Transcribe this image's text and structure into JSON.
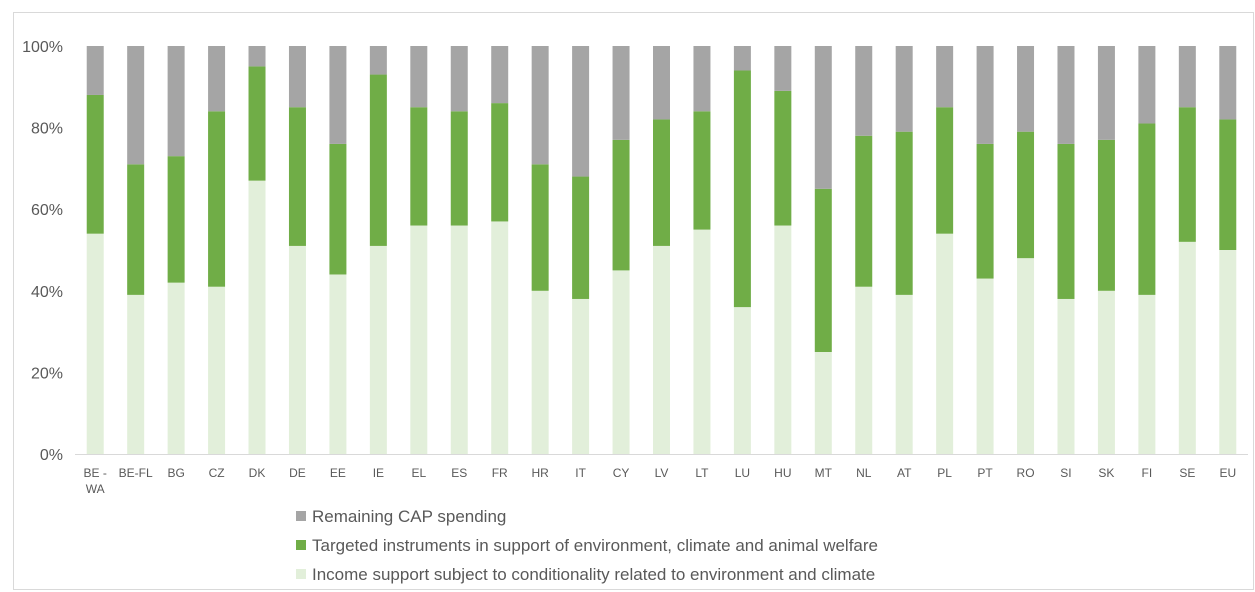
{
  "chart_data": {
    "type": "bar",
    "stacked": true,
    "categories": [
      "BE - WA",
      "BE-FL",
      "BG",
      "CZ",
      "DK",
      "DE",
      "EE",
      "IE",
      "EL",
      "ES",
      "FR",
      "HR",
      "IT",
      "CY",
      "LV",
      "LT",
      "LU",
      "HU",
      "MT",
      "NL",
      "AT",
      "PL",
      "PT",
      "RO",
      "SI",
      "SK",
      "FI",
      "SE",
      "EU"
    ],
    "series": [
      {
        "name": "Income support subject to conditionality related to environment and climate",
        "color": "#e2efda",
        "values": [
          54,
          39,
          42,
          41,
          67,
          51,
          44,
          51,
          56,
          56,
          57,
          40,
          38,
          45,
          51,
          55,
          36,
          56,
          25,
          41,
          39,
          54,
          43,
          48,
          38,
          40,
          39,
          52,
          50
        ]
      },
      {
        "name": "Targeted instruments  in support of environment, climate and animal welfare",
        "color": "#70ad47",
        "values": [
          34,
          32,
          31,
          43,
          28,
          34,
          32,
          42,
          29,
          28,
          29,
          31,
          30,
          32,
          31,
          29,
          58,
          33,
          40,
          37,
          40,
          31,
          33,
          31,
          38,
          37,
          42,
          33,
          32
        ]
      },
      {
        "name": "Remaining CAP spending",
        "color": "#a5a5a5",
        "values": [
          12,
          29,
          27,
          16,
          5,
          15,
          24,
          7,
          15,
          16,
          14,
          29,
          32,
          23,
          18,
          16,
          6,
          11,
          35,
          22,
          21,
          15,
          24,
          21,
          24,
          23,
          19,
          15,
          18
        ]
      }
    ],
    "y_ticks": [
      "0%",
      "20%",
      "40%",
      "60%",
      "80%",
      "100%"
    ],
    "ylim": [
      0,
      100
    ],
    "grid": false,
    "legend": {
      "position": "bottom",
      "order": [
        "Remaining CAP spending",
        "Targeted instruments  in support of environment, climate and animal welfare",
        "Income support subject to conditionality related to environment and climate"
      ]
    }
  }
}
